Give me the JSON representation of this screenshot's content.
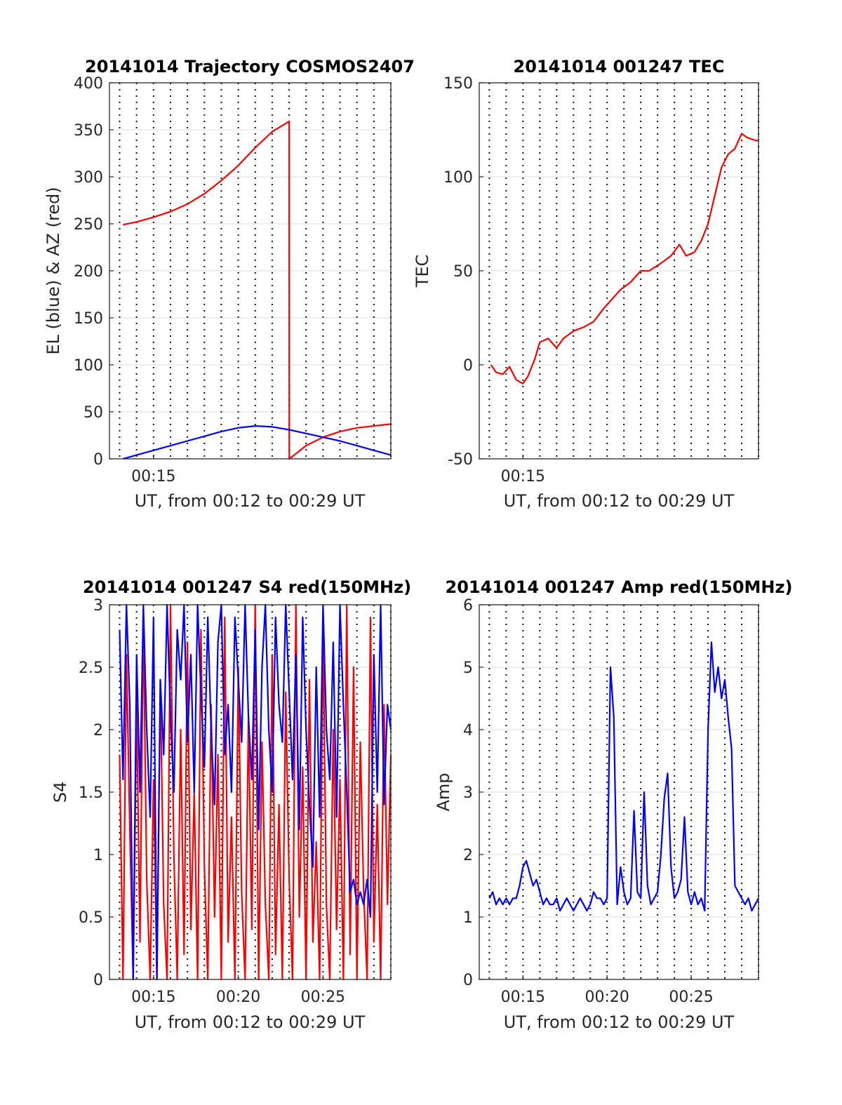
{
  "chart_data": [
    {
      "type": "line",
      "title": "20141014 Trajectory COSMOS2407",
      "xlabel": "UT, from 00:12 to 00:29 UT",
      "ylabel": "EL (blue) & AZ (red)",
      "xlim": [
        12.4,
        29.0
      ],
      "ylim": [
        0,
        400
      ],
      "yticks": [
        "0",
        "50",
        "100",
        "150",
        "200",
        "250",
        "300",
        "350",
        "400"
      ],
      "xticks": [
        "00:15"
      ],
      "xtick_minutes": [
        15
      ],
      "grid": true,
      "series": [
        {
          "color": "#ff0000",
          "x": [
            13.2,
            14,
            15,
            16,
            17,
            18,
            19,
            20,
            21,
            22,
            23.0,
            23.01,
            24,
            25,
            26,
            27,
            28,
            29
          ],
          "y": [
            249,
            252,
            257,
            263,
            271,
            282,
            296,
            312,
            331,
            348,
            359,
            0,
            14,
            23,
            29,
            33,
            35,
            37
          ]
        },
        {
          "color": "#0000ff",
          "x": [
            13.2,
            14,
            15,
            16,
            17,
            18,
            19,
            20,
            21,
            22,
            23,
            24,
            25,
            26,
            27,
            28,
            29
          ],
          "y": [
            0,
            4,
            9,
            14,
            19,
            24,
            29,
            33,
            35,
            34,
            31,
            27,
            23,
            19,
            14,
            9,
            4
          ]
        }
      ]
    },
    {
      "type": "line",
      "title": "20141014 001247 TEC",
      "xlabel": "UT, from 00:12 to 00:29 UT",
      "ylabel": "TEC",
      "xlim": [
        12.4,
        29.0
      ],
      "ylim": [
        -50,
        150
      ],
      "yticks": [
        "-50",
        "0",
        "50",
        "100",
        "150"
      ],
      "xticks": [
        "00:15"
      ],
      "xtick_minutes": [
        15
      ],
      "grid": true,
      "series": [
        {
          "color": "#ff0000",
          "x": [
            13.1,
            13.4,
            13.8,
            14.2,
            14.6,
            15.0,
            15.3,
            15.7,
            16.0,
            16.5,
            17.0,
            17.4,
            18.0,
            18.6,
            19.2,
            19.8,
            20.3,
            20.8,
            21.4,
            22.0,
            22.5,
            23.2,
            23.8,
            24.3,
            24.7,
            25.2,
            25.6,
            26.0,
            26.4,
            26.8,
            27.2,
            27.6,
            28.0,
            28.3,
            28.6,
            29.0
          ],
          "y": [
            0,
            -4,
            -5,
            -1,
            -8,
            -10,
            -6,
            3,
            12,
            14,
            9,
            14,
            18,
            20,
            23,
            30,
            35,
            40,
            44,
            50,
            50,
            54,
            58,
            64,
            58,
            60,
            66,
            75,
            90,
            105,
            112,
            115,
            123,
            121,
            120,
            119
          ]
        }
      ]
    },
    {
      "type": "line",
      "title": "20141014 001247 S4 red(150MHz)",
      "xlabel": "UT, from 00:12 to 00:29 UT",
      "ylabel": "S4",
      "xlim": [
        12.4,
        29.0
      ],
      "ylim": [
        0,
        3
      ],
      "yticks": [
        "0",
        "0.5",
        "1",
        "1.5",
        "2",
        "2.5",
        "3"
      ],
      "xticks": [
        "00:15",
        "00:20",
        "00:25"
      ],
      "xtick_minutes": [
        15,
        20,
        25
      ],
      "grid": true,
      "series": [
        {
          "color": "#ff0000",
          "x": [
            13.0,
            13.2,
            13.4,
            13.6,
            13.8,
            14.0,
            14.2,
            14.4,
            14.6,
            14.8,
            15.0,
            15.2,
            15.4,
            15.6,
            15.8,
            16.0,
            16.2,
            16.4,
            16.6,
            16.8,
            17.0,
            17.2,
            17.4,
            17.6,
            17.8,
            18.0,
            18.2,
            18.4,
            18.6,
            18.8,
            19.0,
            19.2,
            19.4,
            19.6,
            19.8,
            20.0,
            20.2,
            20.4,
            20.6,
            20.8,
            21.0,
            21.2,
            21.4,
            21.6,
            21.8,
            22.0,
            22.2,
            22.4,
            22.6,
            22.8,
            23.0,
            23.2,
            23.4,
            23.6,
            23.8,
            24.0,
            24.2,
            24.4,
            24.6,
            24.8,
            25.0,
            25.2,
            25.4,
            25.6,
            25.8,
            26.0,
            26.2,
            26.4,
            26.6,
            26.8,
            27.0,
            27.2,
            27.4,
            27.6,
            27.8,
            28.0,
            28.2,
            28.4,
            28.6,
            28.8,
            29.0
          ],
          "y": [
            1.8,
            0,
            2.6,
            1.2,
            0,
            2.2,
            0.3,
            2.9,
            0.8,
            0,
            1.6,
            0,
            2.4,
            0.6,
            0,
            3.0,
            1.0,
            0,
            2.0,
            0.2,
            2.7,
            0.4,
            1.5,
            0,
            2.8,
            0.9,
            0,
            2.2,
            0.5,
            1.8,
            0,
            2.9,
            0.3,
            1.3,
            0,
            2.5,
            0.7,
            0,
            2.1,
            0.4,
            3.0,
            0,
            1.9,
            0.6,
            0,
            2.6,
            0.2,
            1.4,
            0,
            2.3,
            0.8,
            0,
            3.0,
            0.5,
            1.7,
            0,
            2.4,
            0.3,
            1.1,
            0,
            2.8,
            0.6,
            0,
            2.0,
            0.4,
            1.6,
            0,
            3.0,
            0.2,
            2.5,
            0,
            1.9,
            0.7,
            0,
            2.9,
            0.3,
            1.4,
            0,
            2.2,
            0.6,
            1.8
          ]
        },
        {
          "color": "#0000ff",
          "x": [
            13.0,
            13.2,
            13.4,
            13.6,
            13.8,
            14.0,
            14.2,
            14.4,
            14.6,
            14.8,
            15.0,
            15.2,
            15.4,
            15.6,
            15.8,
            16.0,
            16.2,
            16.4,
            16.6,
            16.8,
            17.0,
            17.2,
            17.4,
            17.6,
            17.8,
            18.0,
            18.2,
            18.4,
            18.6,
            18.8,
            19.0,
            19.2,
            19.4,
            19.6,
            19.8,
            20.0,
            20.2,
            20.4,
            20.6,
            20.8,
            21.0,
            21.2,
            21.4,
            21.6,
            21.8,
            22.0,
            22.2,
            22.4,
            22.6,
            22.8,
            23.0,
            23.2,
            23.4,
            23.6,
            23.8,
            24.0,
            24.2,
            24.4,
            24.6,
            24.8,
            25.0,
            25.2,
            25.4,
            25.6,
            25.8,
            26.0,
            26.2,
            26.4,
            26.6,
            26.8,
            27.0,
            27.2,
            27.4,
            27.6,
            27.8,
            28.0,
            28.2,
            28.4,
            28.6,
            28.8,
            29.0
          ],
          "y": [
            2.8,
            1.6,
            3.0,
            2.2,
            0,
            2.6,
            1.5,
            3.0,
            2.0,
            1.3,
            2.9,
            0,
            2.4,
            1.8,
            3.0,
            2.1,
            1.5,
            2.8,
            2.4,
            3.0,
            1.9,
            2.6,
            1.5,
            3.0,
            2.3,
            1.7,
            2.9,
            2.0,
            1.4,
            2.7,
            3.0,
            1.8,
            2.2,
            1.5,
            2.9,
            2.4,
            1.9,
            3.0,
            2.1,
            1.6,
            2.8,
            1.2,
            2.5,
            3.0,
            2.0,
            1.5,
            2.9,
            2.2,
            1.9,
            3.0,
            2.3,
            1.6,
            2.6,
            1.2,
            2.9,
            2.0,
            1.4,
            0.9,
            2.5,
            1.3,
            3.0,
            2.0,
            1.6,
            2.7,
            1.3,
            3.0,
            2.2,
            1.5,
            0.7,
            0.8,
            0.6,
            0.7,
            0.6,
            0.8,
            0.5,
            2.6,
            1.5,
            3.0,
            1.4,
            2.2,
            2.0
          ]
        }
      ]
    },
    {
      "type": "line",
      "title": "20141014 001247 Amp red(150MHz)",
      "xlabel": "UT, from 00:12 to 00:29 UT",
      "ylabel": "Amp",
      "xlim": [
        12.4,
        29.0
      ],
      "ylim": [
        0,
        6
      ],
      "yticks": [
        "0",
        "1",
        "2",
        "3",
        "4",
        "5",
        "6"
      ],
      "xticks": [
        "00:15",
        "00:20",
        "00:25"
      ],
      "xtick_minutes": [
        15,
        20,
        25
      ],
      "grid": true,
      "series": [
        {
          "color": "#0000ff",
          "x": [
            13.0,
            13.2,
            13.4,
            13.6,
            13.8,
            14.0,
            14.2,
            14.4,
            14.6,
            14.8,
            15.0,
            15.2,
            15.4,
            15.6,
            15.8,
            16.0,
            16.2,
            16.4,
            16.6,
            16.8,
            17.0,
            17.2,
            17.4,
            17.6,
            17.8,
            18.0,
            18.2,
            18.4,
            18.6,
            18.8,
            19.0,
            19.2,
            19.4,
            19.6,
            19.8,
            20.0,
            20.2,
            20.4,
            20.6,
            20.8,
            21.0,
            21.2,
            21.4,
            21.6,
            21.8,
            22.0,
            22.2,
            22.4,
            22.6,
            22.8,
            23.0,
            23.2,
            23.4,
            23.6,
            23.8,
            24.0,
            24.2,
            24.4,
            24.6,
            24.8,
            25.0,
            25.2,
            25.4,
            25.6,
            25.8,
            26.0,
            26.2,
            26.4,
            26.6,
            26.8,
            27.0,
            27.2,
            27.4,
            27.6,
            27.8,
            28.0,
            28.2,
            28.4,
            28.6,
            28.8,
            29.0
          ],
          "y": [
            1.3,
            1.4,
            1.2,
            1.3,
            1.2,
            1.3,
            1.2,
            1.3,
            1.3,
            1.5,
            1.8,
            1.9,
            1.7,
            1.5,
            1.6,
            1.4,
            1.2,
            1.3,
            1.2,
            1.2,
            1.3,
            1.1,
            1.2,
            1.3,
            1.2,
            1.1,
            1.2,
            1.3,
            1.2,
            1.1,
            1.2,
            1.4,
            1.3,
            1.3,
            1.2,
            1.3,
            5.0,
            4.2,
            1.2,
            1.8,
            1.4,
            1.2,
            1.3,
            2.7,
            1.4,
            1.3,
            3.0,
            1.5,
            1.2,
            1.3,
            1.4,
            2.0,
            2.9,
            3.3,
            1.8,
            1.3,
            1.4,
            1.6,
            2.6,
            1.4,
            1.2,
            1.4,
            1.2,
            1.3,
            1.1,
            4.0,
            5.4,
            4.6,
            5.0,
            4.5,
            4.8,
            4.2,
            3.7,
            1.5,
            1.4,
            1.3,
            1.2,
            1.3,
            1.1,
            1.2,
            1.3
          ]
        }
      ]
    }
  ]
}
